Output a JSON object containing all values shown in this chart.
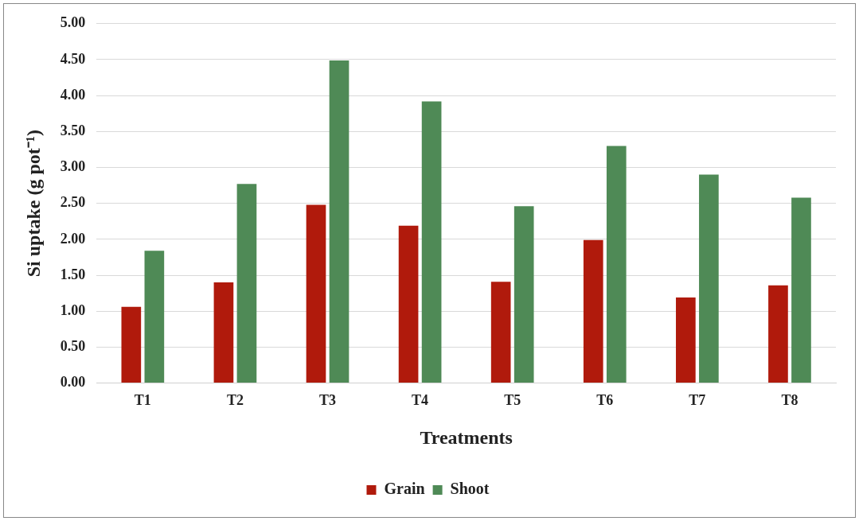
{
  "chart_data": {
    "type": "bar",
    "xlabel": "Treatments",
    "ylabel": "Si uptake (g pot⁻¹)",
    "categories": [
      "T1",
      "T2",
      "T3",
      "T4",
      "T5",
      "T6",
      "T7",
      "T8"
    ],
    "series": [
      {
        "name": "Grain",
        "color": "#b01a0c",
        "values": [
          1.06,
          1.4,
          2.48,
          2.19,
          1.41,
          1.99,
          1.19,
          1.36
        ]
      },
      {
        "name": "Shoot",
        "color": "#4f8a56",
        "values": [
          1.84,
          2.77,
          4.49,
          3.92,
          2.46,
          3.3,
          2.9,
          2.58
        ]
      }
    ],
    "ylim": [
      0,
      5
    ],
    "yticks": [
      {
        "value": 0,
        "label": "0.00"
      },
      {
        "value": 0.5,
        "label": "0.50"
      },
      {
        "value": 1,
        "label": "1.00"
      },
      {
        "value": 1.5,
        "label": "1.50"
      },
      {
        "value": 2,
        "label": "2.00"
      },
      {
        "value": 2.5,
        "label": "2.50"
      },
      {
        "value": 3,
        "label": "3.00"
      },
      {
        "value": 3.5,
        "label": "3.50"
      },
      {
        "value": 4,
        "label": "4.00"
      },
      {
        "value": 4.5,
        "label": "4.50"
      },
      {
        "value": 5,
        "label": "5.00"
      }
    ],
    "grid": "y",
    "legend": "bottom"
  }
}
